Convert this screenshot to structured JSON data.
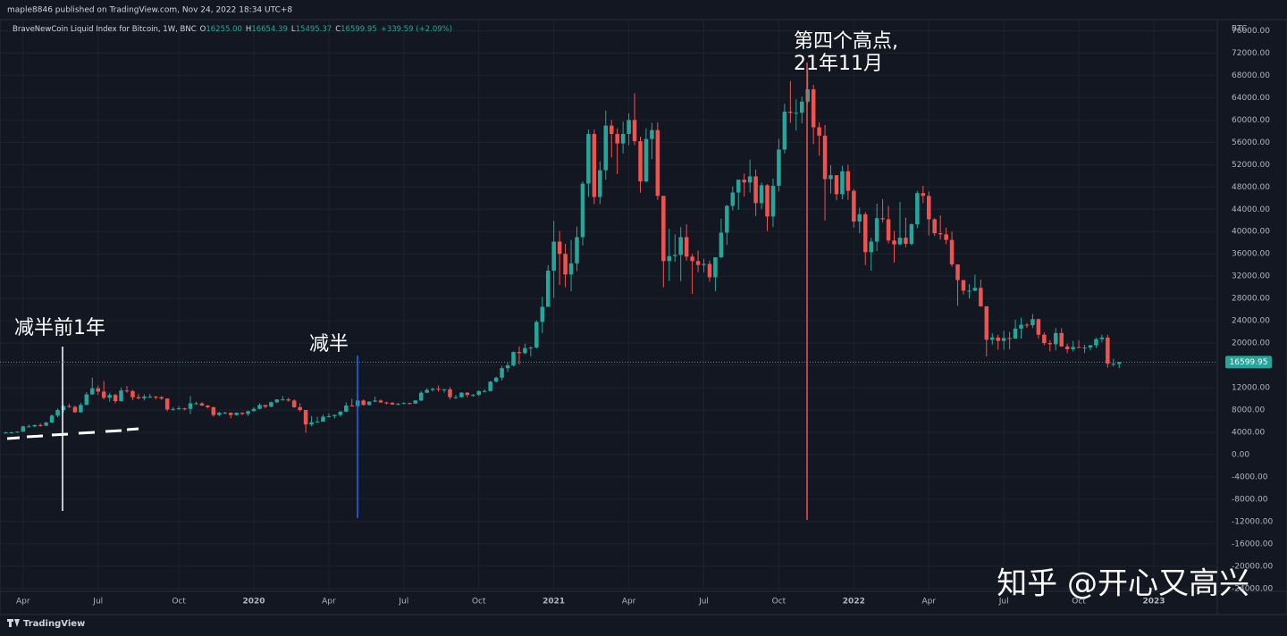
{
  "header": {
    "byline": "maple8846 published on TradingView.com, Nov 24, 2022 18:34 UTC+8",
    "symbol": "BraveNewCoin Liquid Index for Bitcoin, 1W, BNC",
    "open_label": "O",
    "open": "16255.00",
    "high_label": "H",
    "high": "16654.39",
    "low_label": "L",
    "low": "15495.37",
    "close_label": "C",
    "close": "16599.95",
    "change": "+339.59 (+2.09%)",
    "currency": "BTC"
  },
  "annotations": [
    {
      "text": [
        "减半前1年"
      ]
    },
    {
      "text": [
        "减半"
      ]
    },
    {
      "text": [
        "第四个高点,",
        "21年11月"
      ]
    }
  ],
  "watermark": "知乎 @开心又高兴",
  "footer": "TradingView",
  "chart_data": {
    "type": "candlestick",
    "up_color": "#26a69a",
    "down_color": "#ef5350",
    "grid": true,
    "xlim": [
      -1,
      210
    ],
    "ylim": [
      -27400,
      78000
    ],
    "xticks": [
      {
        "value": 3,
        "label": "Apr"
      },
      {
        "value": 16,
        "label": "Jul"
      },
      {
        "value": 30,
        "label": "Oct"
      },
      {
        "value": 43,
        "label": "2020"
      },
      {
        "value": 56,
        "label": "Apr"
      },
      {
        "value": 69,
        "label": "Jul"
      },
      {
        "value": 82,
        "label": "Oct"
      },
      {
        "value": 95,
        "label": "2021"
      },
      {
        "value": 108,
        "label": "Apr"
      },
      {
        "value": 121,
        "label": "Jul"
      },
      {
        "value": 134,
        "label": "Oct"
      },
      {
        "value": 147,
        "label": "2022"
      },
      {
        "value": 160,
        "label": "Apr"
      },
      {
        "value": 173,
        "label": "Jul"
      },
      {
        "value": 186,
        "label": "Oct"
      },
      {
        "value": 199,
        "label": "2023"
      }
    ],
    "yticks": [
      {
        "value": -24000,
        "label": "-24000.00"
      },
      {
        "value": -20000,
        "label": "-20000.00"
      },
      {
        "value": -16000,
        "label": "-16000.00"
      },
      {
        "value": -12000,
        "label": "-12000.00"
      },
      {
        "value": -8000,
        "label": "-8000.00"
      },
      {
        "value": -4000,
        "label": "-4000.00"
      },
      {
        "value": 0,
        "label": "0.00"
      },
      {
        "value": 4000,
        "label": "4000.00"
      },
      {
        "value": 8000,
        "label": "8000.00"
      },
      {
        "value": 12000,
        "label": "12000.00"
      },
      {
        "value": 16000,
        "label": "16000.00"
      },
      {
        "value": 20000,
        "label": "20000.00"
      },
      {
        "value": 24000,
        "label": "24000.00"
      },
      {
        "value": 28000,
        "label": "28000.00"
      },
      {
        "value": 32000,
        "label": "32000.00"
      },
      {
        "value": 36000,
        "label": "36000.00"
      },
      {
        "value": 40000,
        "label": "40000.00"
      },
      {
        "value": 44000,
        "label": "44000.00"
      },
      {
        "value": 48000,
        "label": "48000.00"
      },
      {
        "value": 52000,
        "label": "52000.00"
      },
      {
        "value": 56000,
        "label": "56000.00"
      },
      {
        "value": 60000,
        "label": "60000.00"
      },
      {
        "value": 64000,
        "label": "64000.00"
      },
      {
        "value": 68000,
        "label": "68000.00"
      },
      {
        "value": 72000,
        "label": "72000.00"
      },
      {
        "value": 76000,
        "label": "76000.00"
      }
    ],
    "last_price": {
      "value": 16599.95,
      "label": "16599.95"
    },
    "ohlc": [
      [
        3900,
        4100,
        3800,
        3950
      ],
      [
        3950,
        4100,
        3850,
        3980
      ],
      [
        3980,
        4200,
        3900,
        4100
      ],
      [
        4100,
        5200,
        4100,
        5050
      ],
      [
        5050,
        5400,
        4900,
        5070
      ],
      [
        5070,
        5400,
        4900,
        5300
      ],
      [
        5300,
        5600,
        5000,
        5200
      ],
      [
        5200,
        5900,
        5100,
        5750
      ],
      [
        5750,
        7200,
        5700,
        7000
      ],
      [
        7000,
        8300,
        6700,
        8000
      ],
      [
        8000,
        8900,
        7600,
        8700
      ],
      [
        8700,
        9100,
        8400,
        8550
      ],
      [
        8550,
        8800,
        7500,
        7600
      ],
      [
        7600,
        9300,
        7500,
        8900
      ],
      [
        8900,
        11200,
        8900,
        10800
      ],
      [
        10800,
        13800,
        10700,
        11900
      ],
      [
        11900,
        12400,
        10700,
        11300
      ],
      [
        11300,
        13200,
        9900,
        10200
      ],
      [
        10200,
        11100,
        9500,
        10700
      ],
      [
        10700,
        10900,
        9200,
        9600
      ],
      [
        9600,
        12000,
        9500,
        11500
      ],
      [
        11500,
        12300,
        11100,
        11400
      ],
      [
        11400,
        11600,
        9800,
        10300
      ],
      [
        10300,
        10900,
        9900,
        10100
      ],
      [
        10100,
        10800,
        9700,
        10400
      ],
      [
        10400,
        10900,
        10200,
        10400
      ],
      [
        10400,
        10500,
        9900,
        10300
      ],
      [
        10300,
        10500,
        9800,
        10050
      ],
      [
        10050,
        10100,
        7800,
        8100
      ],
      [
        8100,
        8500,
        7900,
        8200
      ],
      [
        8200,
        8700,
        8000,
        8300
      ],
      [
        8300,
        8400,
        7900,
        8200
      ],
      [
        8200,
        10500,
        7300,
        9200
      ],
      [
        9200,
        9500,
        8900,
        9200
      ],
      [
        9200,
        9400,
        8700,
        8800
      ],
      [
        8800,
        8900,
        8300,
        8500
      ],
      [
        8500,
        8600,
        6800,
        7100
      ],
      [
        7100,
        7700,
        6900,
        7500
      ],
      [
        7500,
        7700,
        7300,
        7500
      ],
      [
        7500,
        7600,
        6500,
        7100
      ],
      [
        7100,
        7600,
        7000,
        7500
      ],
      [
        7500,
        7600,
        7100,
        7300
      ],
      [
        7300,
        7900,
        6900,
        7800
      ],
      [
        7800,
        8500,
        7700,
        8200
      ],
      [
        8200,
        9200,
        8100,
        8900
      ],
      [
        8900,
        8900,
        8300,
        8600
      ],
      [
        8600,
        9500,
        8500,
        9400
      ],
      [
        9400,
        9900,
        9200,
        9900
      ],
      [
        9900,
        10500,
        9700,
        9900
      ],
      [
        9900,
        10200,
        9500,
        9700
      ],
      [
        9700,
        9900,
        8400,
        8500
      ],
      [
        8500,
        9200,
        7700,
        8000
      ],
      [
        8000,
        8000,
        3900,
        5400
      ],
      [
        5400,
        6900,
        5100,
        5800
      ],
      [
        5800,
        6800,
        5800,
        5900
      ],
      [
        5900,
        7200,
        5900,
        6800
      ],
      [
        6800,
        7400,
        6700,
        6900
      ],
      [
        6900,
        7200,
        6500,
        7100
      ],
      [
        7100,
        7800,
        6800,
        7700
      ],
      [
        7700,
        9400,
        7600,
        8800
      ],
      [
        8800,
        10000,
        8700,
        8700
      ],
      [
        8700,
        9900,
        8200,
        9700
      ],
      [
        9700,
        9900,
        8800,
        8900
      ],
      [
        8900,
        9600,
        8800,
        9500
      ],
      [
        9500,
        10400,
        9400,
        9700
      ],
      [
        9700,
        9900,
        9300,
        9350
      ],
      [
        9350,
        9500,
        9000,
        9300
      ],
      [
        9300,
        9400,
        8900,
        9000
      ],
      [
        9000,
        9300,
        8900,
        9100
      ],
      [
        9100,
        9400,
        9100,
        9250
      ],
      [
        9250,
        9300,
        9000,
        9150
      ],
      [
        9150,
        9800,
        9100,
        9700
      ],
      [
        9700,
        11400,
        9600,
        11100
      ],
      [
        11100,
        11900,
        11000,
        11600
      ],
      [
        11600,
        12000,
        11300,
        11800
      ],
      [
        11800,
        12400,
        11300,
        11700
      ],
      [
        11700,
        11800,
        11100,
        11700
      ],
      [
        11700,
        12100,
        9900,
        10300
      ],
      [
        10300,
        10700,
        10000,
        10300
      ],
      [
        10300,
        11200,
        10200,
        11100
      ],
      [
        11100,
        11200,
        10300,
        10700
      ],
      [
        10700,
        10900,
        10400,
        10700
      ],
      [
        10700,
        11500,
        10500,
        11400
      ],
      [
        11400,
        11700,
        11200,
        11400
      ],
      [
        11400,
        13200,
        11300,
        13100
      ],
      [
        13100,
        14000,
        12900,
        13800
      ],
      [
        13800,
        15900,
        13300,
        15500
      ],
      [
        15500,
        16500,
        14800,
        16000
      ],
      [
        16000,
        18500,
        15800,
        18400
      ],
      [
        18400,
        19400,
        16200,
        18200
      ],
      [
        18200,
        19900,
        18000,
        19100
      ],
      [
        19100,
        19400,
        17600,
        19200
      ],
      [
        19200,
        24100,
        19000,
        23800
      ],
      [
        23800,
        28300,
        21800,
        26500
      ],
      [
        26500,
        34000,
        26500,
        33000
      ],
      [
        33000,
        41900,
        28100,
        38200
      ],
      [
        38200,
        40100,
        30400,
        36000
      ],
      [
        36000,
        37800,
        30000,
        32300
      ],
      [
        32300,
        38500,
        29300,
        34300
      ],
      [
        34300,
        40900,
        32900,
        39000
      ],
      [
        39000,
        49000,
        37500,
        48600
      ],
      [
        48600,
        58300,
        46200,
        57500
      ],
      [
        57500,
        58300,
        44900,
        46200
      ],
      [
        46200,
        52600,
        44900,
        51000
      ],
      [
        51000,
        61700,
        49300,
        59000
      ],
      [
        59000,
        60000,
        53300,
        57500
      ],
      [
        57500,
        58500,
        50300,
        55800
      ],
      [
        55800,
        59700,
        54000,
        57500
      ],
      [
        57500,
        61200,
        55500,
        60000
      ],
      [
        60000,
        64800,
        55500,
        56200
      ],
      [
        56200,
        57000,
        47000,
        49000
      ],
      [
        49000,
        58500,
        48800,
        56600
      ],
      [
        56600,
        59500,
        53000,
        58200
      ],
      [
        58200,
        59600,
        45700,
        46400
      ],
      [
        46400,
        46400,
        30000,
        34700
      ],
      [
        34700,
        40500,
        31100,
        35600
      ],
      [
        35600,
        39500,
        34600,
        35800
      ],
      [
        35800,
        40800,
        31100,
        39000
      ],
      [
        39000,
        41300,
        34800,
        35500
      ],
      [
        35500,
        36000,
        28800,
        34700
      ],
      [
        34700,
        36600,
        32700,
        34000
      ],
      [
        34000,
        35100,
        32700,
        34200
      ],
      [
        34200,
        34800,
        31000,
        31800
      ],
      [
        31800,
        35400,
        29300,
        35400
      ],
      [
        35400,
        42300,
        35200,
        39800
      ],
      [
        39800,
        44800,
        37600,
        44600
      ],
      [
        44600,
        48100,
        43800,
        47000
      ],
      [
        47000,
        49300,
        43900,
        49300
      ],
      [
        49300,
        50400,
        46300,
        48800
      ],
      [
        48800,
        52900,
        47000,
        49900
      ],
      [
        49900,
        51100,
        42800,
        45100
      ],
      [
        45100,
        48800,
        44000,
        48300
      ],
      [
        48300,
        48500,
        40100,
        42700
      ],
      [
        42700,
        49500,
        40800,
        48200
      ],
      [
        48200,
        56600,
        47200,
        54700
      ],
      [
        54700,
        62900,
        54000,
        61500
      ],
      [
        61500,
        67000,
        59500,
        61300
      ],
      [
        61300,
        63700,
        58100,
        61300
      ],
      [
        61300,
        64200,
        59400,
        63300
      ],
      [
        63300,
        69000,
        62900,
        65500
      ],
      [
        65500,
        66300,
        55700,
        58700
      ],
      [
        58700,
        59600,
        53600,
        57200
      ],
      [
        57200,
        59100,
        42000,
        49400
      ],
      [
        49400,
        51900,
        46800,
        50100
      ],
      [
        50100,
        50100,
        45600,
        46700
      ],
      [
        46700,
        51800,
        45800,
        50800
      ],
      [
        50800,
        52000,
        45700,
        47300
      ],
      [
        47300,
        47600,
        40700,
        41800
      ],
      [
        41800,
        44300,
        39700,
        43100
      ],
      [
        43100,
        43500,
        34000,
        36300
      ],
      [
        36300,
        38900,
        33000,
        38200
      ],
      [
        38200,
        45000,
        36500,
        42400
      ],
      [
        42400,
        45800,
        41600,
        42200
      ],
      [
        42200,
        44600,
        37900,
        38400
      ],
      [
        38400,
        40100,
        34400,
        37700
      ],
      [
        37700,
        45300,
        37500,
        38900
      ],
      [
        38900,
        42500,
        37200,
        37800
      ],
      [
        37800,
        41500,
        37500,
        41300
      ],
      [
        41300,
        47300,
        40600,
        46900
      ],
      [
        46900,
        48200,
        45100,
        46400
      ],
      [
        46400,
        47200,
        39300,
        42200
      ],
      [
        42200,
        42400,
        39200,
        39700
      ],
      [
        39700,
        42900,
        38600,
        39500
      ],
      [
        39500,
        40700,
        37700,
        38500
      ],
      [
        38500,
        40000,
        33700,
        34100
      ],
      [
        34100,
        34100,
        26700,
        31300
      ],
      [
        31300,
        31300,
        28700,
        29400
      ],
      [
        29400,
        30600,
        28000,
        29400
      ],
      [
        29400,
        32300,
        29300,
        29900
      ],
      [
        29900,
        31400,
        26500,
        26600
      ],
      [
        26600,
        26600,
        17600,
        20600
      ],
      [
        20600,
        21800,
        19700,
        21000
      ],
      [
        21000,
        21500,
        18800,
        20400
      ],
      [
        20400,
        22200,
        18800,
        20900
      ],
      [
        20900,
        22000,
        18900,
        20800
      ],
      [
        20800,
        24200,
        20800,
        22600
      ],
      [
        22600,
        24600,
        20800,
        23300
      ],
      [
        23300,
        23600,
        22700,
        23200
      ],
      [
        23200,
        25200,
        22700,
        24300
      ],
      [
        24300,
        24400,
        20800,
        21500
      ],
      [
        21500,
        21900,
        19600,
        20000
      ],
      [
        20000,
        20500,
        18500,
        19800
      ],
      [
        19800,
        22700,
        18700,
        21800
      ],
      [
        21800,
        22700,
        19300,
        19400
      ],
      [
        19400,
        19900,
        18200,
        18900
      ],
      [
        18900,
        20400,
        18500,
        19300
      ],
      [
        19300,
        20500,
        19100,
        19200
      ],
      [
        19200,
        19700,
        18200,
        19200
      ],
      [
        19200,
        19700,
        18700,
        19600
      ],
      [
        19600,
        21000,
        19100,
        20700
      ],
      [
        20700,
        21500,
        20100,
        21000
      ],
      [
        21000,
        21500,
        15600,
        16300
      ],
      [
        16300,
        17200,
        15800,
        16300
      ],
      [
        16255,
        16654.39,
        15495.37,
        16599.95
      ]
    ]
  }
}
